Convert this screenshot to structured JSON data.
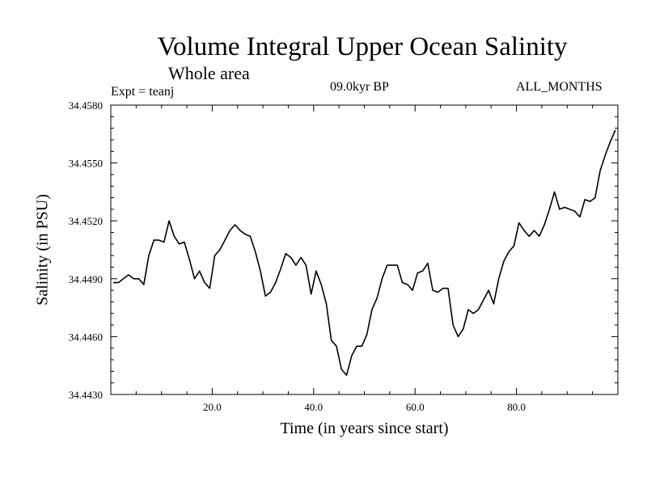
{
  "chart_data": {
    "type": "line",
    "title": "Volume Integral Upper Ocean Salinity",
    "subtitle": "Whole area",
    "annotations": {
      "experiment": "Expt = teanj",
      "period": "09.0kyr BP",
      "months": "ALL_MONTHS"
    },
    "xlabel": "Time (in years since start)",
    "ylabel": "Salinity (in PSU)",
    "xlim": [
      0,
      100
    ],
    "ylim": [
      34.443,
      34.458
    ],
    "xticks": [
      20,
      40,
      60,
      80
    ],
    "xtick_labels": [
      "20.0",
      "40.0",
      "60.0",
      "80.0"
    ],
    "yticks": [
      34.443,
      34.446,
      34.449,
      34.452,
      34.455,
      34.458
    ],
    "ytick_labels": [
      "34.4430",
      "34.4460",
      "34.4490",
      "34.4520",
      "34.4550",
      "34.4580"
    ],
    "grid": false,
    "series": [
      {
        "name": "Salinity",
        "color": "#000000",
        "x": [
          0.5,
          1.5,
          2.5,
          3.5,
          4.5,
          5.5,
          6.5,
          7.5,
          8.5,
          9.5,
          10.5,
          11.5,
          12.5,
          13.5,
          14.5,
          15.5,
          16.5,
          17.5,
          18.5,
          19.5,
          20.5,
          21.5,
          22.5,
          23.5,
          24.5,
          25.5,
          26.5,
          27.5,
          28.5,
          29.5,
          30.5,
          31.5,
          32.5,
          33.5,
          34.5,
          35.5,
          36.5,
          37.5,
          38.5,
          39.5,
          40.5,
          41.5,
          42.5,
          43.5,
          44.5,
          45.5,
          46.5,
          47.5,
          48.5,
          49.5,
          50.5,
          51.5,
          52.5,
          53.5,
          54.5,
          55.5,
          56.5,
          57.5,
          58.5,
          59.5,
          60.5,
          61.5,
          62.5,
          63.5,
          64.5,
          65.5,
          66.5,
          67.5,
          68.5,
          69.5,
          70.5,
          71.5,
          72.5,
          73.5,
          74.5,
          75.5,
          76.5,
          77.5,
          78.5,
          79.5,
          80.5,
          81.5,
          82.5,
          83.5,
          84.5,
          85.5,
          86.5,
          87.5,
          88.5,
          89.5,
          90.5,
          91.5,
          92.5,
          93.5,
          94.5,
          95.5,
          96.5,
          97.5,
          98.5,
          99.5
        ],
        "values": [
          34.4488,
          34.4488,
          34.449,
          34.4492,
          34.449,
          34.449,
          34.4487,
          34.4502,
          34.451,
          34.451,
          34.4509,
          34.452,
          34.4512,
          34.4508,
          34.4509,
          34.45,
          34.449,
          34.4494,
          34.4488,
          34.4485,
          34.4502,
          34.4505,
          34.451,
          34.4515,
          34.4518,
          34.4515,
          34.4513,
          34.4512,
          34.4504,
          34.4494,
          34.4481,
          34.4483,
          34.4488,
          34.4495,
          34.4503,
          34.4501,
          34.4497,
          34.4501,
          34.4497,
          34.4482,
          34.4494,
          34.4487,
          34.4477,
          34.4458,
          34.4455,
          34.4443,
          34.444,
          34.445,
          34.4455,
          34.4455,
          34.4461,
          34.4474,
          34.448,
          34.449,
          34.4497,
          34.4497,
          34.4497,
          34.4488,
          34.4487,
          34.4484,
          34.4493,
          34.4494,
          34.4498,
          34.4484,
          34.4483,
          34.4485,
          34.4485,
          34.4466,
          34.446,
          34.4464,
          34.4474,
          34.4472,
          34.4474,
          34.4479,
          34.4484,
          34.4477,
          34.449,
          34.4499,
          34.4504,
          34.4507,
          34.4519,
          34.4515,
          34.4512,
          34.4515,
          34.4512,
          34.4518,
          34.4526,
          34.4535,
          34.4526,
          34.4527,
          34.4526,
          34.4525,
          34.4522,
          34.4531,
          34.453,
          34.4532,
          34.4546,
          34.4554,
          34.4561,
          34.4567
        ]
      }
    ]
  }
}
